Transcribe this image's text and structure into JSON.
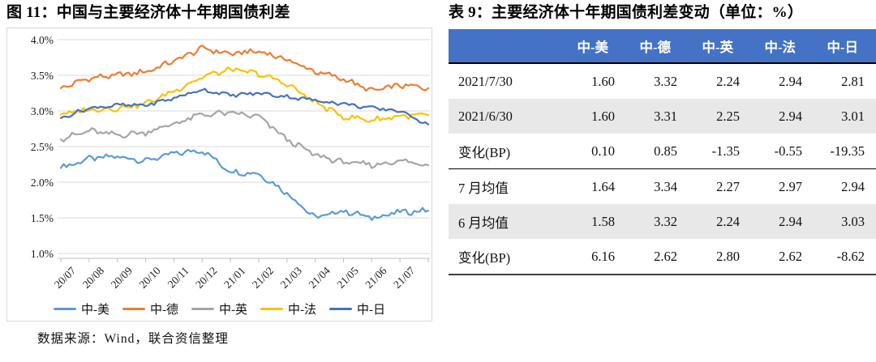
{
  "figure": {
    "title": "图 11：中国与主要经济体十年期国债利差",
    "source": "数据来源：Wind，联合资信整理"
  },
  "table": {
    "title": "表 9：主要经济体十年期国债利差变动（单位：%）",
    "columns": [
      "中-美",
      "中-德",
      "中-英",
      "中-法",
      "中-日"
    ],
    "rows": [
      {
        "label": "2021/7/30",
        "values": [
          "1.60",
          "3.32",
          "2.24",
          "2.94",
          "2.81"
        ],
        "shade": false,
        "separator_below": false
      },
      {
        "label": "2021/6/30",
        "values": [
          "1.60",
          "3.31",
          "2.25",
          "2.94",
          "3.01"
        ],
        "shade": true,
        "separator_below": false
      },
      {
        "label": "变化(BP)",
        "values": [
          "0.10",
          "0.85",
          "-1.35",
          "-0.55",
          "-19.35"
        ],
        "shade": false,
        "separator_below": true
      },
      {
        "label": "7 月均值",
        "values": [
          "1.64",
          "3.34",
          "2.27",
          "2.97",
          "2.94"
        ],
        "shade": false,
        "separator_below": false
      },
      {
        "label": "6 月均值",
        "values": [
          "1.58",
          "3.32",
          "2.24",
          "2.94",
          "3.03"
        ],
        "shade": true,
        "separator_below": false
      },
      {
        "label": "变化(BP)",
        "values": [
          "6.16",
          "2.62",
          "2.80",
          "2.62",
          "-8.62"
        ],
        "shade": false,
        "separator_below": false
      }
    ],
    "colors": {
      "header_bg": "#4472C4",
      "stripe_bg": "#E8E8E8",
      "header_text": "#FFFFFF"
    }
  },
  "chart_data": {
    "type": "line",
    "title": "中国与主要经济体十年期国债利差",
    "xlabel": "",
    "ylabel": "",
    "y_tick_labels": [
      "4.0%",
      "3.5%",
      "3.0%",
      "2.5%",
      "2.0%",
      "1.5%",
      "1.0%"
    ],
    "ylim": [
      1.0,
      4.0
    ],
    "grid": true,
    "legend_position": "bottom",
    "x_tick_labels": [
      "20/07",
      "20/08",
      "20/09",
      "20/10",
      "20/11",
      "20/12",
      "21/01",
      "21/02",
      "21/03",
      "21/04",
      "21/05",
      "21/06",
      "21/07"
    ],
    "note": "monthly_anchors are values (%) at each month boundary 20/07..end of 21/07, estimated from the plot; last anchor equals 2021/7/30 table value",
    "series": [
      {
        "name": "中-美",
        "color": "#5B9BD5",
        "jitter": 0.045,
        "monthly_anchors": [
          2.2,
          2.33,
          2.36,
          2.3,
          2.4,
          2.45,
          2.15,
          2.12,
          1.85,
          1.5,
          1.6,
          1.5,
          1.58,
          1.6
        ]
      },
      {
        "name": "中-德",
        "color": "#ED7D31",
        "jitter": 0.045,
        "monthly_anchors": [
          3.32,
          3.46,
          3.5,
          3.55,
          3.7,
          3.88,
          3.8,
          3.84,
          3.72,
          3.55,
          3.45,
          3.28,
          3.36,
          3.32
        ]
      },
      {
        "name": "中-英",
        "color": "#A5A5A5",
        "jitter": 0.045,
        "monthly_anchors": [
          2.6,
          2.72,
          2.66,
          2.7,
          2.82,
          2.95,
          2.97,
          2.92,
          2.6,
          2.38,
          2.28,
          2.24,
          2.3,
          2.24
        ]
      },
      {
        "name": "中-法",
        "color": "#FFC000",
        "jitter": 0.045,
        "monthly_anchors": [
          2.95,
          3.02,
          3.04,
          3.1,
          3.28,
          3.48,
          3.58,
          3.52,
          3.38,
          3.12,
          2.92,
          2.87,
          2.93,
          2.94
        ]
      },
      {
        "name": "中-日",
        "color": "#4472C4",
        "jitter": 0.03,
        "monthly_anchors": [
          2.9,
          3.04,
          3.08,
          3.08,
          3.18,
          3.3,
          3.22,
          3.25,
          3.2,
          3.15,
          3.1,
          3.04,
          3.0,
          2.81
        ]
      }
    ]
  }
}
